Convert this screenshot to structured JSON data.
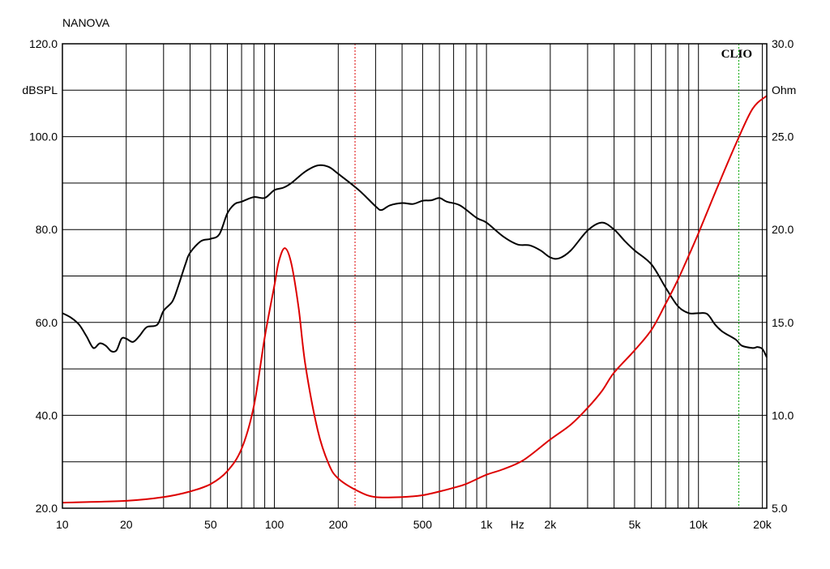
{
  "chart_data": {
    "type": "line",
    "title": "NANOVA",
    "watermark": "CLIO",
    "x_scale": "log",
    "xlim": [
      10,
      21000
    ],
    "x_ticks": [
      {
        "v": 10,
        "label": "10"
      },
      {
        "v": 20,
        "label": "20"
      },
      {
        "v": 50,
        "label": "50"
      },
      {
        "v": 100,
        "label": "100"
      },
      {
        "v": 200,
        "label": "200"
      },
      {
        "v": 500,
        "label": "500"
      },
      {
        "v": 1000,
        "label": "1k"
      },
      {
        "v": 2000,
        "label": "2k"
      },
      {
        "v": 5000,
        "label": "5k"
      },
      {
        "v": 10000,
        "label": "10k"
      },
      {
        "v": 20000,
        "label": "20k"
      }
    ],
    "x_unit_label": "Hz",
    "left_axis": {
      "unit": "dBSPL",
      "range": [
        20,
        120
      ],
      "ticks": [
        {
          "v": 120,
          "label": "120.0"
        },
        {
          "v": 100,
          "label": "100.0"
        },
        {
          "v": 80,
          "label": "80.0"
        },
        {
          "v": 60,
          "label": "60.0"
        },
        {
          "v": 40,
          "label": "40.0"
        },
        {
          "v": 20,
          "label": "20.0"
        }
      ]
    },
    "right_axis": {
      "unit": "Ohm",
      "range": [
        5,
        30
      ],
      "ticks": [
        {
          "v": 30,
          "label": "30.0"
        },
        {
          "v": 25,
          "label": "25.0"
        },
        {
          "v": 20,
          "label": "20.0"
        },
        {
          "v": 15,
          "label": "15.0"
        },
        {
          "v": 10,
          "label": "10.0"
        },
        {
          "v": 5,
          "label": "5.0"
        }
      ]
    },
    "grid": true,
    "markers": [
      {
        "x": 240,
        "color": "#dd0000",
        "style": "dotted"
      },
      {
        "x": 15500,
        "color": "#00aa00",
        "style": "dotted"
      }
    ],
    "series": [
      {
        "axis": "left",
        "color": "#000000",
        "points": [
          [
            10,
            62
          ],
          [
            11,
            61
          ],
          [
            12,
            59.5
          ],
          [
            13,
            57
          ],
          [
            14,
            54.5
          ],
          [
            15,
            55.5
          ],
          [
            16,
            55
          ],
          [
            17,
            53.8
          ],
          [
            18,
            54
          ],
          [
            19,
            56.5
          ],
          [
            20,
            56.5
          ],
          [
            21.5,
            55.8
          ],
          [
            23,
            57
          ],
          [
            25,
            59
          ],
          [
            28,
            59.5
          ],
          [
            30,
            62.5
          ],
          [
            33,
            64.5
          ],
          [
            35,
            67.5
          ],
          [
            38,
            72.5
          ],
          [
            40,
            75
          ],
          [
            45,
            77.5
          ],
          [
            50,
            78
          ],
          [
            55,
            79
          ],
          [
            60,
            83.5
          ],
          [
            65,
            85.5
          ],
          [
            70,
            86
          ],
          [
            80,
            87
          ],
          [
            90,
            86.8
          ],
          [
            100,
            88.5
          ],
          [
            110,
            89
          ],
          [
            120,
            90
          ],
          [
            140,
            92.5
          ],
          [
            160,
            93.8
          ],
          [
            180,
            93.5
          ],
          [
            200,
            92
          ],
          [
            250,
            88.5
          ],
          [
            300,
            85
          ],
          [
            320,
            84.2
          ],
          [
            350,
            85.2
          ],
          [
            400,
            85.7
          ],
          [
            450,
            85.5
          ],
          [
            500,
            86.2
          ],
          [
            550,
            86.3
          ],
          [
            600,
            86.8
          ],
          [
            650,
            86
          ],
          [
            750,
            85.2
          ],
          [
            900,
            82.5
          ],
          [
            1000,
            81.5
          ],
          [
            1200,
            78.5
          ],
          [
            1400,
            76.8
          ],
          [
            1600,
            76.6
          ],
          [
            1800,
            75.5
          ],
          [
            2000,
            74
          ],
          [
            2200,
            73.8
          ],
          [
            2500,
            75.5
          ],
          [
            3000,
            79.8
          ],
          [
            3500,
            81.5
          ],
          [
            4000,
            80
          ],
          [
            4500,
            77.5
          ],
          [
            5000,
            75.5
          ],
          [
            6000,
            72.5
          ],
          [
            7000,
            67.5
          ],
          [
            8000,
            63.5
          ],
          [
            9000,
            62
          ],
          [
            10000,
            62
          ],
          [
            11000,
            61.8
          ],
          [
            12000,
            59.5
          ],
          [
            13000,
            58
          ],
          [
            15000,
            56.3
          ],
          [
            16000,
            55
          ],
          [
            18000,
            54.5
          ],
          [
            19000,
            54.7
          ],
          [
            20000,
            54.3
          ],
          [
            21000,
            52.5
          ]
        ]
      },
      {
        "axis": "right",
        "color": "#dd0000",
        "points": [
          [
            10,
            5.3
          ],
          [
            20,
            5.4
          ],
          [
            30,
            5.6
          ],
          [
            40,
            5.9
          ],
          [
            50,
            6.3
          ],
          [
            60,
            7
          ],
          [
            70,
            8.2
          ],
          [
            80,
            10.5
          ],
          [
            90,
            14.2
          ],
          [
            100,
            17
          ],
          [
            105,
            18.3
          ],
          [
            112,
            19
          ],
          [
            120,
            18.2
          ],
          [
            130,
            15.8
          ],
          [
            140,
            12.7
          ],
          [
            160,
            9.2
          ],
          [
            180,
            7.4
          ],
          [
            200,
            6.6
          ],
          [
            250,
            5.9
          ],
          [
            300,
            5.6
          ],
          [
            400,
            5.6
          ],
          [
            500,
            5.7
          ],
          [
            600,
            5.9
          ],
          [
            700,
            6.1
          ],
          [
            800,
            6.3
          ],
          [
            1000,
            6.8
          ],
          [
            1200,
            7.1
          ],
          [
            1500,
            7.6
          ],
          [
            2000,
            8.7
          ],
          [
            2500,
            9.5
          ],
          [
            3000,
            10.4
          ],
          [
            3500,
            11.3
          ],
          [
            4000,
            12.3
          ],
          [
            5000,
            13.5
          ],
          [
            6000,
            14.6
          ],
          [
            7000,
            16
          ],
          [
            8000,
            17.3
          ],
          [
            9000,
            18.6
          ],
          [
            10000,
            19.8
          ],
          [
            12000,
            22
          ],
          [
            15000,
            24.6
          ],
          [
            18000,
            26.5
          ],
          [
            21000,
            27.2
          ]
        ]
      }
    ]
  }
}
